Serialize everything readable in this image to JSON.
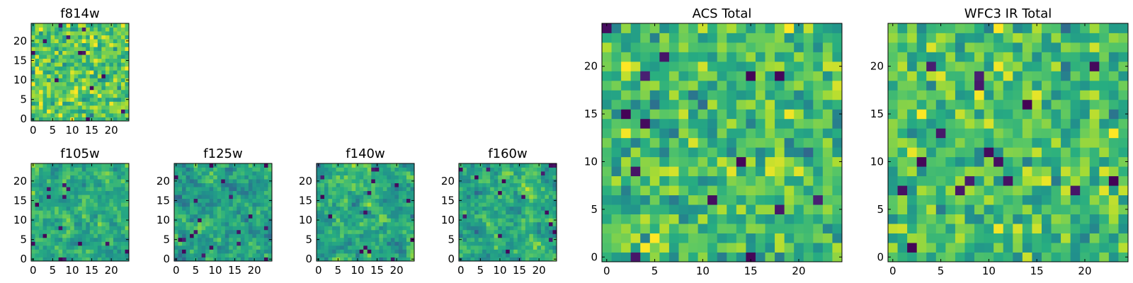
{
  "figure": "HST cutout heatmap mosaic",
  "chart_data": [
    {
      "id": "f814w",
      "type": "heatmap",
      "title": "f814w",
      "xlim": [
        -0.5,
        24.5
      ],
      "ylim": [
        -0.5,
        24.5
      ],
      "xticks": [
        0,
        5,
        10,
        15,
        20
      ],
      "yticks": [
        0,
        5,
        10,
        15,
        20
      ],
      "xtick_labels": [
        "0",
        "5",
        "10",
        "15",
        "20"
      ],
      "ytick_labels": [
        "0",
        "5",
        "10",
        "15",
        "20"
      ],
      "grid_size": 25,
      "colormap": "viridis",
      "value_range": [
        0,
        1
      ],
      "seed": 11,
      "bright_bias": 0.74,
      "spread": 0.16,
      "dark_pixels": 12,
      "smooth": 0
    },
    {
      "id": "f105w",
      "type": "heatmap",
      "title": "f105w",
      "xlim": [
        -0.5,
        24.5
      ],
      "ylim": [
        -0.5,
        24.5
      ],
      "xticks": [
        0,
        5,
        10,
        15,
        20
      ],
      "yticks": [
        0,
        5,
        10,
        15,
        20
      ],
      "xtick_labels": [
        "0",
        "5",
        "10",
        "15",
        "20"
      ],
      "ytick_labels": [
        "0",
        "5",
        "10",
        "15",
        "20"
      ],
      "grid_size": 25,
      "colormap": "viridis",
      "value_range": [
        0,
        1
      ],
      "seed": 23,
      "bright_bias": 0.62,
      "spread": 0.22,
      "dark_pixels": 14,
      "smooth": 1
    },
    {
      "id": "f125w",
      "type": "heatmap",
      "title": "f125w",
      "xlim": [
        -0.5,
        24.5
      ],
      "ylim": [
        -0.5,
        24.5
      ],
      "xticks": [
        0,
        5,
        10,
        15,
        20
      ],
      "yticks": [
        0,
        5,
        10,
        15,
        20
      ],
      "xtick_labels": [
        "0",
        "5",
        "10",
        "15",
        "20"
      ],
      "ytick_labels": [
        "0",
        "5",
        "10",
        "15",
        "20"
      ],
      "grid_size": 25,
      "colormap": "viridis",
      "value_range": [
        0,
        1
      ],
      "seed": 37,
      "bright_bias": 0.58,
      "spread": 0.24,
      "dark_pixels": 20,
      "smooth": 1
    },
    {
      "id": "f140w",
      "type": "heatmap",
      "title": "f140w",
      "xlim": [
        -0.5,
        24.5
      ],
      "ylim": [
        -0.5,
        24.5
      ],
      "xticks": [
        0,
        5,
        10,
        15,
        20
      ],
      "yticks": [
        0,
        5,
        10,
        15,
        20
      ],
      "xtick_labels": [
        "0",
        "5",
        "10",
        "15",
        "20"
      ],
      "ytick_labels": [
        "0",
        "5",
        "10",
        "15",
        "20"
      ],
      "grid_size": 25,
      "colormap": "viridis",
      "value_range": [
        0,
        1
      ],
      "seed": 41,
      "bright_bias": 0.6,
      "spread": 0.24,
      "dark_pixels": 16,
      "smooth": 1
    },
    {
      "id": "f160w",
      "type": "heatmap",
      "title": "f160w",
      "xlim": [
        -0.5,
        24.5
      ],
      "ylim": [
        -0.5,
        24.5
      ],
      "xticks": [
        0,
        5,
        10,
        15,
        20
      ],
      "yticks": [
        0,
        5,
        10,
        15,
        20
      ],
      "xtick_labels": [
        "0",
        "5",
        "10",
        "15",
        "20"
      ],
      "ytick_labels": [
        "0",
        "5",
        "10",
        "15",
        "20"
      ],
      "grid_size": 25,
      "colormap": "viridis",
      "value_range": [
        0,
        1
      ],
      "seed": 53,
      "bright_bias": 0.62,
      "spread": 0.24,
      "dark_pixels": 16,
      "smooth": 1
    },
    {
      "id": "acs_total",
      "type": "heatmap",
      "title": "ACS Total",
      "xlim": [
        -0.5,
        24.5
      ],
      "ylim": [
        -0.5,
        24.5
      ],
      "xticks": [
        0,
        5,
        10,
        15,
        20
      ],
      "yticks": [
        0,
        5,
        10,
        15,
        20
      ],
      "xtick_labels": [
        "0",
        "5",
        "10",
        "15",
        "20"
      ],
      "ytick_labels": [
        "0",
        "5",
        "10",
        "15",
        "20"
      ],
      "grid_size": 25,
      "colormap": "viridis",
      "value_range": [
        0,
        1
      ],
      "seed": 67,
      "bright_bias": 0.7,
      "spread": 0.16,
      "dark_pixels": 14,
      "smooth": 0
    },
    {
      "id": "wfc3_ir_total",
      "type": "heatmap",
      "title": "WFC3 IR Total",
      "xlim": [
        -0.5,
        24.5
      ],
      "ylim": [
        -0.5,
        24.5
      ],
      "xticks": [
        0,
        5,
        10,
        15,
        20
      ],
      "yticks": [
        0,
        5,
        10,
        15,
        20
      ],
      "xtick_labels": [
        "0",
        "5",
        "10",
        "15",
        "20"
      ],
      "ytick_labels": [
        "0",
        "5",
        "10",
        "15",
        "20"
      ],
      "grid_size": 25,
      "colormap": "viridis",
      "value_range": [
        0,
        1
      ],
      "seed": 79,
      "bright_bias": 0.7,
      "spread": 0.16,
      "dark_pixels": 16,
      "smooth": 0
    }
  ]
}
